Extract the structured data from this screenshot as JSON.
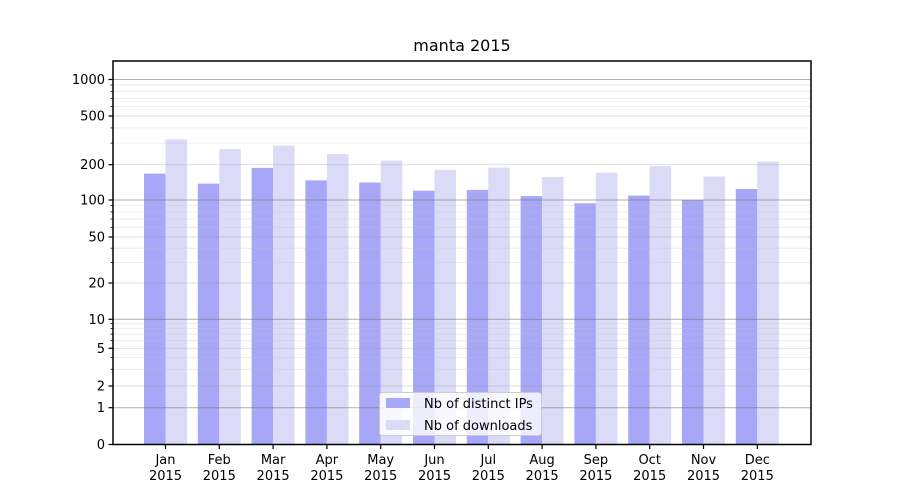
{
  "chart_data": {
    "type": "bar",
    "title": "manta 2015",
    "xlabel": "",
    "ylabel": "",
    "yscale": "symlog",
    "grid": true,
    "ylim": [
      0,
      1400
    ],
    "yticks": [
      0,
      1,
      2,
      5,
      10,
      20,
      50,
      100,
      200,
      500,
      1000
    ],
    "categories": [
      "Jan",
      "Feb",
      "Mar",
      "Apr",
      "May",
      "Jun",
      "Jul",
      "Aug",
      "Sep",
      "Oct",
      "Nov",
      "Dec"
    ],
    "year_label": "2015",
    "series": [
      {
        "name": "Nb of distinct IPs",
        "color": "#a7a7f7",
        "values": [
          168,
          138,
          188,
          147,
          141,
          120,
          122,
          108,
          94,
          109,
          100,
          124
        ]
      },
      {
        "name": "Nb of downloads",
        "color": "#dbdbf8",
        "values": [
          322,
          268,
          286,
          244,
          216,
          181,
          189,
          157,
          171,
          194,
          159,
          212
        ]
      }
    ],
    "legend": {
      "position": "inside-bottom-center"
    }
  }
}
